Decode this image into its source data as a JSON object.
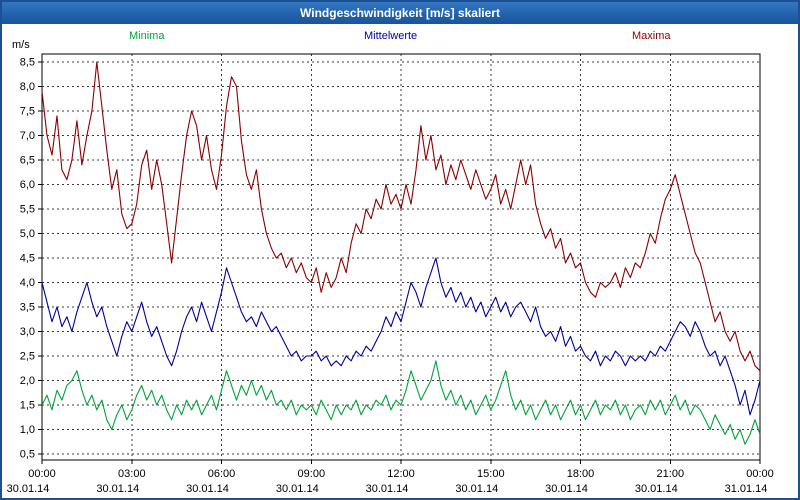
{
  "header": {
    "title": "Windgeschwindigkeit [m/s] skaliert",
    "bar_color": "#2263ad"
  },
  "chart_data": {
    "type": "line",
    "title": "Windgeschwindigkeit [m/s] skaliert",
    "xlabel": "",
    "ylabel": "m/s",
    "ylim": [
      0.5,
      8.5
    ],
    "y_tick_step": 0.5,
    "grid": "dashed",
    "legend_position": "top",
    "x_hours": 24,
    "x_ticks": [
      {
        "hour": 0,
        "time": "00:00",
        "date": "30.01.14"
      },
      {
        "hour": 3,
        "time": "03:00",
        "date": "30.01.14"
      },
      {
        "hour": 6,
        "time": "06:00",
        "date": "30.01.14"
      },
      {
        "hour": 9,
        "time": "09:00",
        "date": "30.01.14"
      },
      {
        "hour": 12,
        "time": "12:00",
        "date": "30.01.14"
      },
      {
        "hour": 15,
        "time": "15:00",
        "date": "30.01.14"
      },
      {
        "hour": 18,
        "time": "18:00",
        "date": "30.01.14"
      },
      {
        "hour": 21,
        "time": "21:00",
        "date": "30.01.14"
      },
      {
        "hour": 24,
        "time": "00:00",
        "date": "31.01.14"
      }
    ],
    "series": [
      {
        "name": "Minima",
        "color": "#00a33a",
        "values": [
          1.5,
          1.7,
          1.4,
          1.8,
          1.6,
          1.9,
          2.0,
          2.2,
          1.8,
          1.5,
          1.7,
          1.4,
          1.6,
          1.2,
          1.0,
          1.3,
          1.5,
          1.2,
          1.4,
          1.7,
          1.9,
          1.6,
          1.8,
          1.5,
          1.7,
          1.4,
          1.2,
          1.5,
          1.3,
          1.6,
          1.4,
          1.6,
          1.3,
          1.5,
          1.7,
          1.4,
          1.8,
          2.2,
          1.9,
          1.6,
          1.9,
          1.7,
          2.0,
          1.7,
          1.9,
          1.6,
          1.8,
          1.5,
          1.6,
          1.4,
          1.6,
          1.3,
          1.5,
          1.4,
          1.5,
          1.3,
          1.6,
          1.4,
          1.2,
          1.5,
          1.3,
          1.5,
          1.4,
          1.6,
          1.3,
          1.5,
          1.4,
          1.6,
          1.5,
          1.7,
          1.4,
          1.6,
          1.5,
          1.8,
          2.2,
          1.9,
          1.6,
          1.8,
          2.0,
          2.4,
          1.9,
          1.6,
          1.8,
          1.5,
          1.7,
          1.4,
          1.6,
          1.3,
          1.5,
          1.7,
          1.4,
          1.6,
          1.9,
          2.2,
          1.7,
          1.4,
          1.6,
          1.3,
          1.5,
          1.2,
          1.4,
          1.6,
          1.3,
          1.5,
          1.2,
          1.4,
          1.6,
          1.3,
          1.5,
          1.2,
          1.4,
          1.6,
          1.3,
          1.5,
          1.4,
          1.6,
          1.3,
          1.5,
          1.2,
          1.4,
          1.5,
          1.3,
          1.6,
          1.4,
          1.6,
          1.3,
          1.5,
          1.7,
          1.4,
          1.6,
          1.3,
          1.5,
          1.4,
          1.2,
          1.0,
          1.3,
          1.1,
          0.9,
          1.1,
          0.8,
          1.0,
          0.7,
          0.9,
          1.2,
          0.9
        ]
      },
      {
        "name": "Mittelwerte",
        "color": "#0000a0",
        "values": [
          4.0,
          3.6,
          3.2,
          3.5,
          3.1,
          3.3,
          3.0,
          3.4,
          3.7,
          4.0,
          3.6,
          3.3,
          3.5,
          3.1,
          2.8,
          2.5,
          2.9,
          3.2,
          3.0,
          3.3,
          3.6,
          3.2,
          2.9,
          3.1,
          2.8,
          2.5,
          2.3,
          2.6,
          3.0,
          3.3,
          3.5,
          3.2,
          3.6,
          3.3,
          3.0,
          3.4,
          3.8,
          4.3,
          4.0,
          3.7,
          3.4,
          3.2,
          3.3,
          3.1,
          3.4,
          3.2,
          3.0,
          3.1,
          2.9,
          2.7,
          2.5,
          2.6,
          2.4,
          2.5,
          2.5,
          2.6,
          2.4,
          2.5,
          2.3,
          2.4,
          2.3,
          2.5,
          2.4,
          2.6,
          2.5,
          2.7,
          2.6,
          2.8,
          3.0,
          3.3,
          3.1,
          3.4,
          3.2,
          3.6,
          4.0,
          3.8,
          3.5,
          3.9,
          4.2,
          4.5,
          4.0,
          3.7,
          3.9,
          3.6,
          3.8,
          3.5,
          3.7,
          3.4,
          3.6,
          3.3,
          3.5,
          3.7,
          3.4,
          3.6,
          3.3,
          3.5,
          3.6,
          3.4,
          3.2,
          3.5,
          3.1,
          2.9,
          3.0,
          2.8,
          3.1,
          2.7,
          2.9,
          2.6,
          2.7,
          2.5,
          2.4,
          2.6,
          2.3,
          2.5,
          2.4,
          2.6,
          2.5,
          2.3,
          2.5,
          2.4,
          2.5,
          2.4,
          2.6,
          2.5,
          2.7,
          2.6,
          2.8,
          3.0,
          3.2,
          3.1,
          2.9,
          3.2,
          3.0,
          2.7,
          2.5,
          2.6,
          2.3,
          2.5,
          2.2,
          1.9,
          1.5,
          1.8,
          1.3,
          1.6,
          2.0
        ]
      },
      {
        "name": "Maxima",
        "color": "#8b0000",
        "values": [
          7.9,
          7.0,
          6.6,
          7.4,
          6.3,
          6.1,
          6.5,
          7.3,
          6.4,
          7.0,
          7.5,
          8.5,
          7.6,
          6.7,
          5.9,
          6.3,
          5.4,
          5.1,
          5.2,
          5.6,
          6.4,
          6.7,
          5.9,
          6.5,
          6.0,
          5.2,
          4.4,
          5.3,
          6.2,
          7.0,
          7.5,
          7.2,
          6.5,
          7.0,
          6.3,
          5.9,
          6.6,
          7.6,
          8.2,
          8.0,
          6.9,
          6.2,
          5.9,
          6.3,
          5.5,
          5.0,
          4.7,
          4.5,
          4.6,
          4.3,
          4.5,
          4.2,
          4.4,
          4.1,
          4.0,
          4.3,
          3.8,
          4.2,
          3.9,
          4.1,
          4.5,
          4.2,
          4.8,
          5.2,
          5.0,
          5.5,
          5.3,
          5.7,
          5.5,
          6.0,
          5.6,
          5.8,
          5.5,
          6.0,
          5.6,
          6.3,
          7.2,
          6.5,
          7.0,
          6.3,
          6.6,
          6.0,
          6.4,
          6.1,
          6.5,
          6.2,
          5.9,
          6.3,
          6.0,
          5.7,
          5.9,
          6.2,
          5.6,
          5.9,
          5.5,
          6.0,
          6.5,
          6.0,
          6.4,
          5.6,
          5.2,
          4.9,
          5.1,
          4.7,
          4.9,
          4.4,
          4.6,
          4.3,
          4.4,
          4.0,
          3.8,
          3.7,
          4.0,
          3.9,
          4.0,
          4.2,
          3.9,
          4.3,
          4.1,
          4.4,
          4.3,
          4.6,
          5.0,
          4.8,
          5.3,
          5.7,
          5.9,
          6.2,
          5.8,
          5.4,
          5.0,
          4.6,
          4.4,
          4.0,
          3.6,
          3.2,
          3.4,
          3.0,
          2.8,
          3.0,
          2.6,
          2.4,
          2.6,
          2.3,
          2.2
        ]
      }
    ]
  }
}
